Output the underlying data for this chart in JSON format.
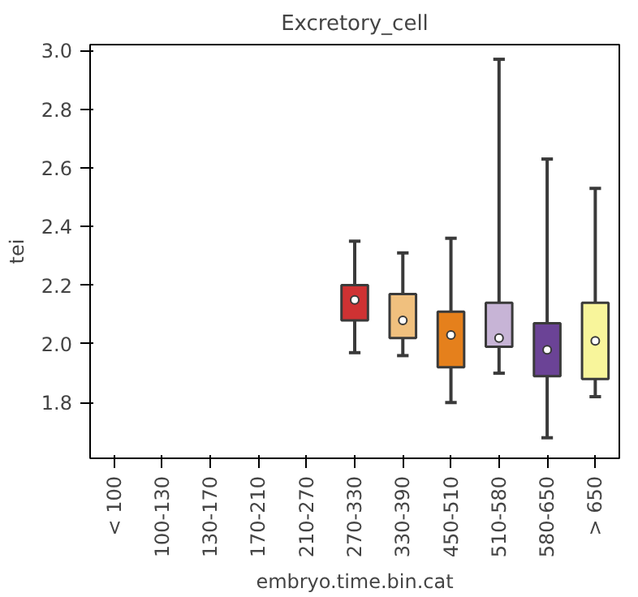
{
  "chart_data": {
    "type": "box",
    "title": "Excretory_cell",
    "xlabel": "embryo.time.bin.cat",
    "ylabel": "tei",
    "categories": [
      "< 100",
      "100-130",
      "130-170",
      "170-210",
      "210-270",
      "270-330",
      "330-390",
      "450-510",
      "510-580",
      "580-650",
      "> 650"
    ],
    "colors": [
      null,
      null,
      null,
      null,
      null,
      "#cf3233",
      "#f0c07e",
      "#e5801c",
      "#c7b4d6",
      "#6b4396",
      "#f8f59b"
    ],
    "boxes": [
      null,
      null,
      null,
      null,
      null,
      {
        "low": 1.97,
        "q1": 2.08,
        "median": 2.15,
        "q3": 2.2,
        "high": 2.35
      },
      {
        "low": 1.96,
        "q1": 2.02,
        "median": 2.08,
        "q3": 2.17,
        "high": 2.31
      },
      {
        "low": 1.8,
        "q1": 1.92,
        "median": 2.03,
        "q3": 2.11,
        "high": 2.36
      },
      {
        "low": 1.9,
        "q1": 1.99,
        "median": 2.02,
        "q3": 2.14,
        "high": 2.97
      },
      {
        "low": 1.68,
        "q1": 1.89,
        "median": 1.98,
        "q3": 2.07,
        "high": 2.63
      },
      {
        "low": 1.82,
        "q1": 1.88,
        "median": 2.01,
        "q3": 2.14,
        "high": 2.53
      }
    ],
    "ylim": [
      1.61,
      3.02
    ],
    "yticks": [
      1.8,
      {
        "value": 2,
        "label": "2.0"
      },
      2.2,
      2.4,
      2.6,
      2.8,
      {
        "value": 3,
        "label": "3.0"
      }
    ],
    "grid": false
  }
}
